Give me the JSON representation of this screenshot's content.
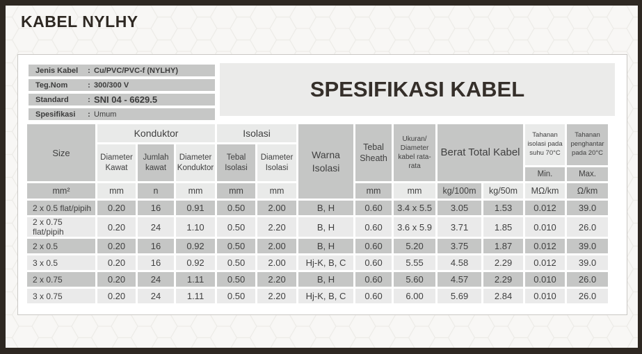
{
  "page": {
    "title": "KABEL NYLHY"
  },
  "info": {
    "colon": ":",
    "rows": [
      {
        "label": "Jenis Kabel",
        "value": "Cu/PVC/PVC-f (NYLHY)"
      },
      {
        "label": "Teg.Nom",
        "value": "300/300 V"
      },
      {
        "label": "Standard",
        "value": "SNI 04 - 6629.5"
      },
      {
        "label": "Spesifikasi",
        "value": "Umum"
      }
    ]
  },
  "spec_title": "SPESIFIKASI KABEL",
  "table": {
    "header": {
      "size": "Size",
      "konduktor": "Konduktor",
      "diameter_kawat": "Diameter Kawat",
      "jumlah_kawat": "Jumlah kawat",
      "diameter_konduktor": "Diameter Konduktor",
      "isolasi": "Isolasi",
      "tebal_isolasi": "Tebal Isolasi",
      "diameter_isolasi": "Diameter Isolasi",
      "warna_isolasi": "Warna Isolasi",
      "tebal_sheath": "Tebal Sheath",
      "ukuran": "Ukuran/ Diameter kabel rata-rata",
      "berat_total": "Berat Total Kabel",
      "tahanan_isolasi": "Tahanan isolasi pada suhu 70°C",
      "tahanan_penghantar": "Tahanan penghantar pada 20°C",
      "min": "Min.",
      "max": "Max."
    },
    "units": [
      "mm²",
      "mm",
      "n",
      "mm",
      "mm",
      "mm",
      "mm",
      "mm",
      "kg/100m",
      "kg/50m",
      "MΩ/km",
      "Ω/km"
    ],
    "rows": [
      [
        "2 x 0.5 flat/pipih",
        "0.20",
        "16",
        "0.91",
        "0.50",
        "2.00",
        "B, H",
        "0.60",
        "3.4 x 5.5",
        "3.05",
        "1.53",
        "0.012",
        "39.0"
      ],
      [
        "2 x 0.75 flat/pipih",
        "0.20",
        "24",
        "1.10",
        "0.50",
        "2.20",
        "B, H",
        "0.60",
        "3.6 x 5.9",
        "3.71",
        "1.85",
        "0.010",
        "26.0"
      ],
      [
        "2 x 0.5",
        "0.20",
        "16",
        "0.92",
        "0.50",
        "2.00",
        "B, H",
        "0.60",
        "5.20",
        "3.75",
        "1.87",
        "0.012",
        "39.0"
      ],
      [
        "3 x 0.5",
        "0.20",
        "16",
        "0.92",
        "0.50",
        "2.00",
        "Hj-K, B, C",
        "0.60",
        "5.55",
        "4.58",
        "2.29",
        "0.012",
        "39.0"
      ],
      [
        "2 x 0.75",
        "0.20",
        "24",
        "1.11",
        "0.50",
        "2.20",
        "B, H",
        "0.60",
        "5.60",
        "4.57",
        "2.29",
        "0.010",
        "26.0"
      ],
      [
        "3 x 0.75",
        "0.20",
        "24",
        "1.11",
        "0.50",
        "2.20",
        "Hj-K, B, C",
        "0.60",
        "6.00",
        "5.69",
        "2.84",
        "0.010",
        "26.0"
      ]
    ]
  },
  "colors": {
    "frame": "#2e2822",
    "page_background": "#f8f7f5",
    "panel_background": "#ffffff",
    "spec_panel_background": "#ebebea",
    "cell_gray": "#c5c6c5",
    "cell_light": "#e9eae9",
    "text_dark": "#3c3c3c"
  }
}
